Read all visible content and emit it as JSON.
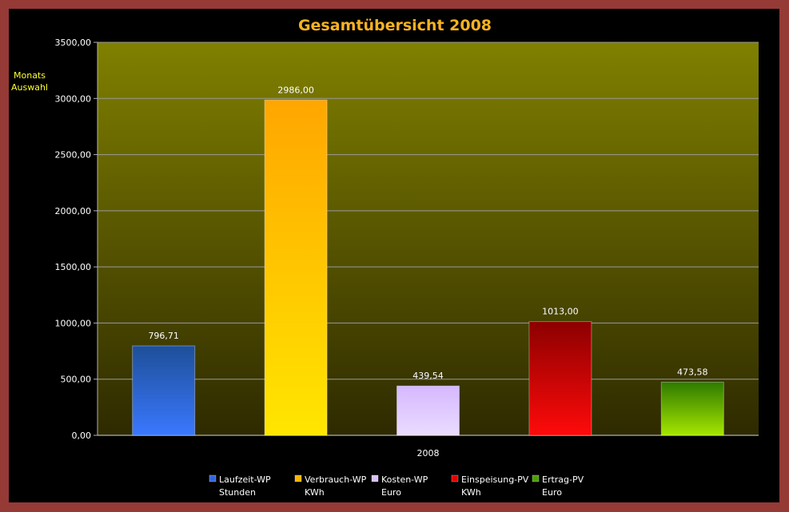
{
  "chart_data": {
    "type": "bar",
    "title": "Gesamtübersicht 2008",
    "side_label_lines": [
      "Monats",
      "Auswahl"
    ],
    "categories": [
      "2008"
    ],
    "ylim": [
      0,
      3500
    ],
    "y_ticks": [
      0,
      500,
      1000,
      1500,
      2000,
      2500,
      3000,
      3500
    ],
    "y_tick_labels": [
      "0,00",
      "500,00",
      "1000,00",
      "1500,00",
      "2000,00",
      "2500,00",
      "3000,00",
      "3500,00"
    ],
    "grid": true,
    "legend_position": "bottom",
    "plot_background": [
      "#808000",
      "#2e2a00"
    ],
    "series": [
      {
        "name_lines": [
          "Laufzeit-WP",
          "Stunden"
        ],
        "values": [
          796.71
        ],
        "value_label": "796,71",
        "color_top": "#1e4f99",
        "color_bottom": "#3a78ff",
        "legend_color": "#3366dd"
      },
      {
        "name_lines": [
          "Verbrauch-WP",
          "KWh"
        ],
        "values": [
          2986.0
        ],
        "value_label": "2986,00",
        "color_top": "#ffa600",
        "color_bottom": "#ffe600",
        "legend_color": "#ffb300"
      },
      {
        "name_lines": [
          "Kosten-WP",
          "Euro"
        ],
        "values": [
          439.54
        ],
        "value_label": "439,54",
        "color_top": "#d6b8ff",
        "color_bottom": "#eadcff",
        "legend_color": "#d8c0ff"
      },
      {
        "name_lines": [
          "Einspeisung-PV",
          "KWh"
        ],
        "values": [
          1013.0
        ],
        "value_label": "1013,00",
        "color_top": "#8c0000",
        "color_bottom": "#ff0a0a",
        "legend_color": "#e00000"
      },
      {
        "name_lines": [
          "Ertrag-PV",
          "Euro"
        ],
        "values": [
          473.58
        ],
        "value_label": "473,58",
        "color_top": "#2e7a00",
        "color_bottom": "#a6e600",
        "legend_color": "#4aa000"
      }
    ]
  }
}
